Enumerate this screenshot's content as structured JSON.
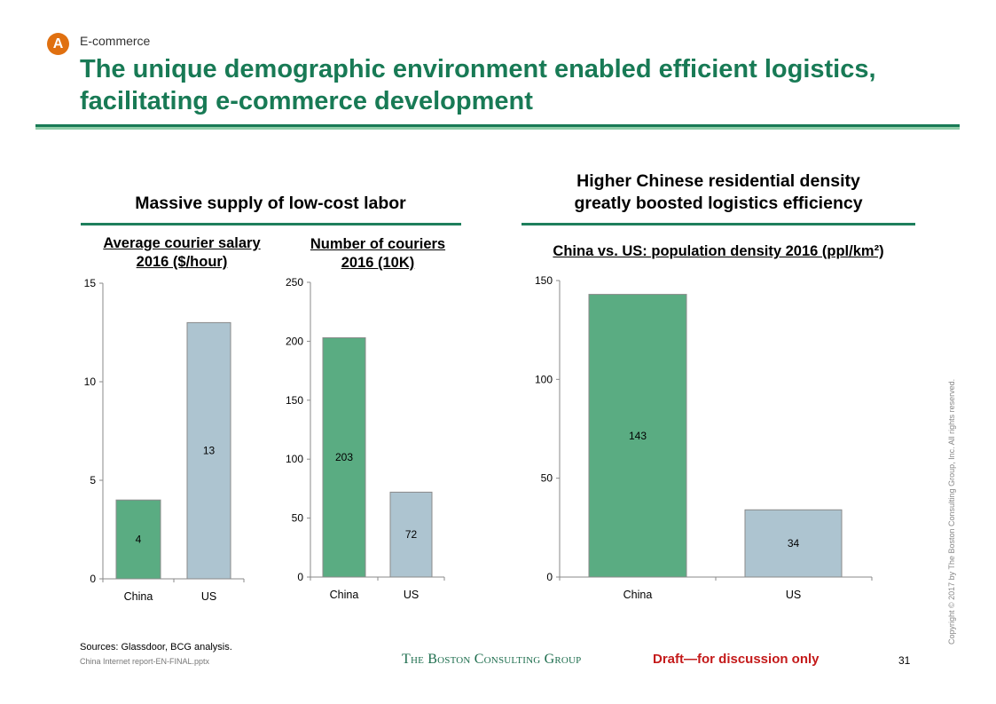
{
  "header": {
    "badge": "A",
    "section": "E-commerce",
    "title": "The unique demographic environment enabled efficient logistics, facilitating e-commerce development"
  },
  "left_panel": {
    "title": "Massive supply of low-cost labor"
  },
  "right_panel": {
    "title_line1": "Higher Chinese residential density",
    "title_line2": "greatly boosted logistics efficiency"
  },
  "colors": {
    "china_bar": "#5aac82",
    "us_bar": "#adc4d0",
    "brand_green": "#187a55",
    "badge_orange": "#e07010",
    "draft_red": "#c41a1a"
  },
  "chart_data": [
    {
      "type": "bar",
      "title_line1": "Average courier salary",
      "title_line2": "2016 ($/hour)",
      "categories": [
        "China",
        "US"
      ],
      "values": [
        4,
        13
      ],
      "data_labels": [
        "4",
        "13"
      ],
      "ylim": [
        0,
        15
      ],
      "yticks": [
        0,
        5,
        10,
        15
      ],
      "ytick_labels": [
        "0",
        "5",
        "10",
        "15"
      ],
      "xlabel": "",
      "ylabel": "",
      "grid": false,
      "legend": "none"
    },
    {
      "type": "bar",
      "title_line1": "Number of couriers",
      "title_line2": "2016 (10K)",
      "categories": [
        "China",
        "US"
      ],
      "values": [
        203,
        72
      ],
      "data_labels": [
        "203",
        "72"
      ],
      "ylim": [
        0,
        250
      ],
      "yticks": [
        0,
        50,
        100,
        150,
        200,
        250
      ],
      "ytick_labels": [
        "0",
        "50",
        "100",
        "150",
        "200",
        "250"
      ],
      "xlabel": "",
      "ylabel": "",
      "grid": false,
      "legend": "none"
    },
    {
      "type": "bar",
      "title_line1": "China vs. US: population density 2016 (ppl/km²)",
      "title_line2": "",
      "categories": [
        "China",
        "US"
      ],
      "values": [
        143,
        34
      ],
      "data_labels": [
        "143",
        "34"
      ],
      "ylim": [
        0,
        150
      ],
      "yticks": [
        0,
        50,
        100,
        150
      ],
      "ytick_labels": [
        "0",
        "50",
        "100",
        "150"
      ],
      "xlabel": "",
      "ylabel": "",
      "grid": false,
      "legend": "none"
    }
  ],
  "footer": {
    "sources": "Sources: Glassdoor, BCG analysis.",
    "filename": "China Internet report-EN-FINAL.pptx",
    "brand": "The Boston Consulting Group",
    "draft": "Draft—for discussion only",
    "page": "31",
    "copyright": "Copyright © 2017 by The Boston Consulting Group, Inc. All rights reserved."
  }
}
